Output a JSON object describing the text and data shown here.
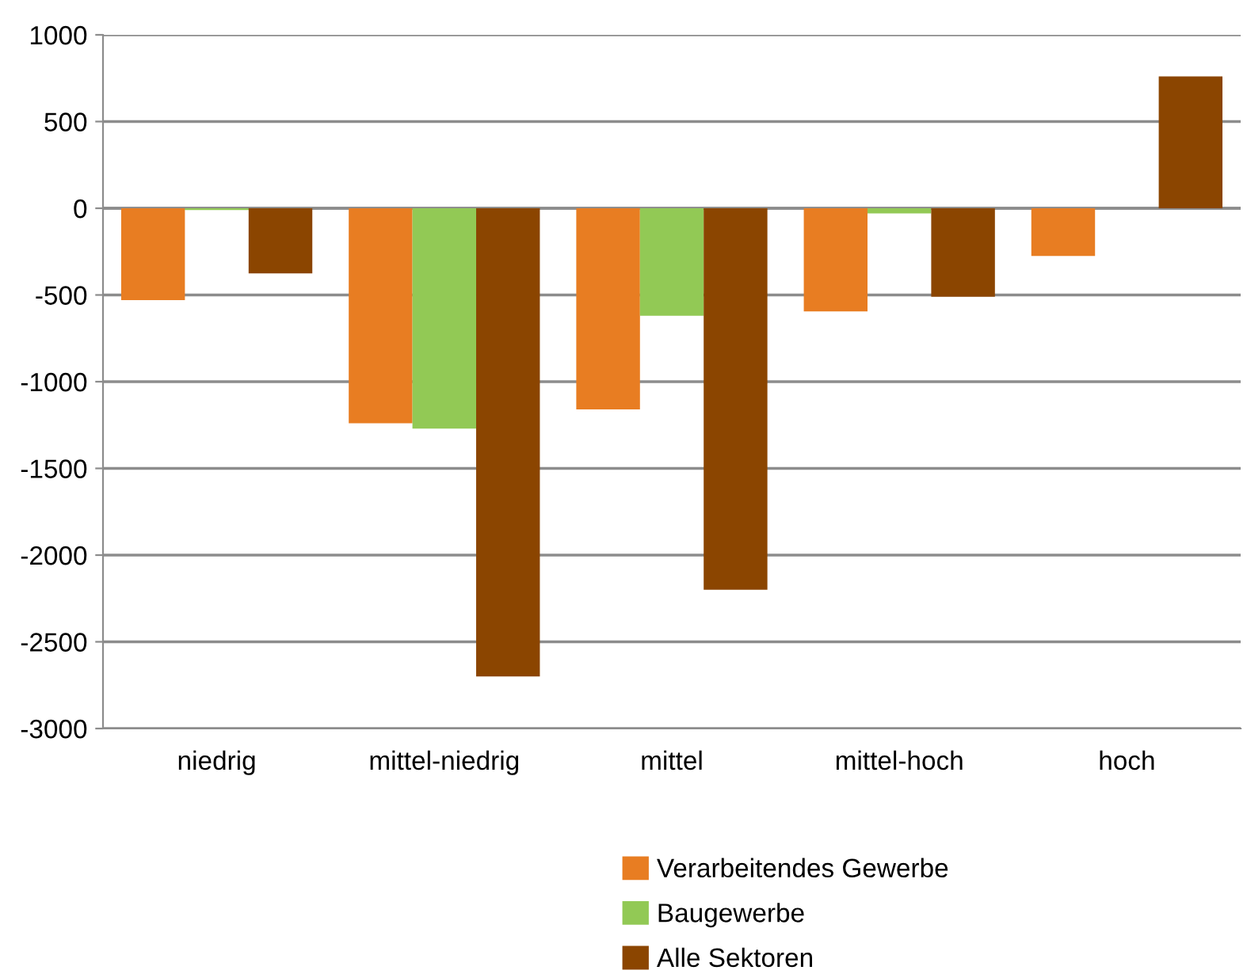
{
  "chart_data": {
    "type": "bar",
    "categories": [
      "niedrig",
      "mittel-niedrig",
      "mittel",
      "mittel-hoch",
      "hoch"
    ],
    "series": [
      {
        "name": "Verarbeitendes Gewerbe",
        "color": "#e87d22",
        "values": [
          -530,
          -1240,
          -1160,
          -595,
          -275
        ]
      },
      {
        "name": "Baugewerbe",
        "color": "#92c955",
        "values": [
          -10,
          -1270,
          -620,
          -30,
          0
        ]
      },
      {
        "name": "Alle Sektoren",
        "color": "#8b4500",
        "values": [
          -375,
          -2700,
          -2200,
          -510,
          760
        ]
      }
    ],
    "ylim": [
      -3000,
      1000
    ],
    "yticks": [
      -3000,
      -2500,
      -2000,
      -1500,
      -1000,
      -500,
      0,
      500,
      1000
    ],
    "grid": "y",
    "legend": "bottom"
  }
}
